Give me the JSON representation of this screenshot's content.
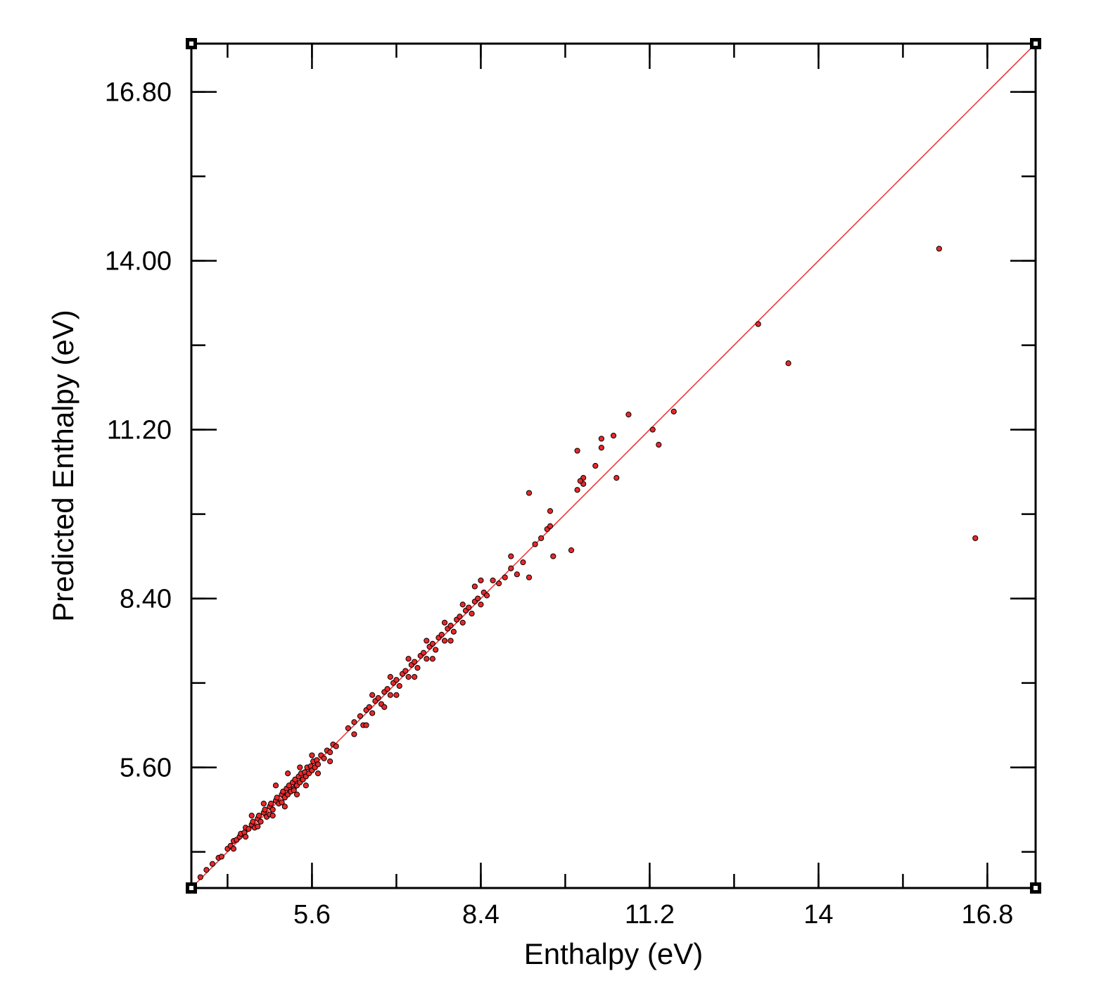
{
  "chart_data": {
    "type": "scatter",
    "title": "",
    "xlabel": "Enthalpy (eV)",
    "ylabel": "Predicted Enthalpy (eV)",
    "xlim": [
      3.6,
      17.6
    ],
    "ylim": [
      3.6,
      17.6
    ],
    "x_ticks": [
      5.6,
      8.4,
      11.2,
      14,
      16.8
    ],
    "x_tick_labels": [
      "5.6",
      "8.4",
      "11.2",
      "14",
      "16.8"
    ],
    "y_ticks": [
      5.6,
      8.4,
      11.2,
      14.0,
      16.8
    ],
    "y_tick_labels": [
      "5.60",
      "8.40",
      "11.20",
      "14.00",
      "16.80"
    ],
    "grid": false,
    "legend": "none",
    "marker_color": "#e8282a",
    "marker_edge_color": "#000000",
    "reference_line": {
      "x": [
        3.6,
        17.6
      ],
      "y": [
        3.6,
        17.6
      ],
      "color": "#e8282a"
    },
    "series": [
      {
        "points": [
          [
            3.75,
            3.78
          ],
          [
            3.85,
            3.9
          ],
          [
            3.95,
            4.0
          ],
          [
            4.05,
            4.1
          ],
          [
            4.1,
            4.12
          ],
          [
            4.2,
            4.25
          ],
          [
            4.25,
            4.3
          ],
          [
            4.3,
            4.38
          ],
          [
            4.35,
            4.4
          ],
          [
            4.4,
            4.45
          ],
          [
            4.42,
            4.5
          ],
          [
            4.48,
            4.52
          ],
          [
            4.5,
            4.6
          ],
          [
            4.55,
            4.58
          ],
          [
            4.6,
            4.65
          ],
          [
            4.62,
            4.7
          ],
          [
            4.65,
            4.6
          ],
          [
            4.7,
            4.75
          ],
          [
            4.72,
            4.8
          ],
          [
            4.75,
            4.7
          ],
          [
            4.8,
            4.85
          ],
          [
            4.82,
            4.9
          ],
          [
            4.85,
            4.78
          ],
          [
            4.9,
            4.95
          ],
          [
            4.92,
            5.0
          ],
          [
            4.95,
            4.9
          ],
          [
            5.0,
            5.05
          ],
          [
            5.02,
            5.1
          ],
          [
            5.05,
            5.0
          ],
          [
            5.1,
            5.15
          ],
          [
            5.12,
            5.2
          ],
          [
            5.15,
            5.1
          ],
          [
            5.18,
            5.25
          ],
          [
            5.2,
            5.15
          ],
          [
            5.22,
            5.3
          ],
          [
            5.25,
            5.2
          ],
          [
            5.28,
            5.35
          ],
          [
            5.3,
            5.25
          ],
          [
            5.32,
            5.4
          ],
          [
            5.35,
            5.3
          ],
          [
            5.38,
            5.45
          ],
          [
            5.4,
            5.35
          ],
          [
            5.42,
            5.5
          ],
          [
            5.45,
            5.4
          ],
          [
            5.48,
            5.52
          ],
          [
            5.5,
            5.45
          ],
          [
            5.52,
            5.6
          ],
          [
            5.55,
            5.5
          ],
          [
            5.58,
            5.62
          ],
          [
            5.6,
            5.55
          ],
          [
            5.62,
            5.7
          ],
          [
            5.65,
            5.6
          ],
          [
            5.68,
            5.72
          ],
          [
            5.7,
            5.65
          ],
          [
            5.75,
            5.8
          ],
          [
            5.8,
            5.75
          ],
          [
            5.85,
            5.88
          ],
          [
            5.9,
            5.85
          ],
          [
            5.95,
            5.98
          ],
          [
            6.0,
            5.95
          ],
          [
            4.3,
            4.25
          ],
          [
            4.5,
            4.45
          ],
          [
            4.7,
            4.62
          ],
          [
            4.9,
            4.82
          ],
          [
            5.1,
            5.02
          ],
          [
            5.3,
            5.22
          ],
          [
            5.0,
            5.3
          ],
          [
            5.2,
            5.5
          ],
          [
            5.4,
            5.6
          ],
          [
            5.6,
            5.8
          ],
          [
            4.8,
            5.0
          ],
          [
            4.6,
            4.8
          ],
          [
            5.5,
            5.3
          ],
          [
            5.7,
            5.5
          ],
          [
            5.9,
            5.7
          ],
          [
            4.95,
            4.8
          ],
          [
            5.15,
            4.95
          ],
          [
            5.35,
            5.15
          ],
          [
            6.2,
            6.25
          ],
          [
            6.3,
            6.15
          ],
          [
            6.4,
            6.45
          ],
          [
            6.45,
            6.3
          ],
          [
            6.5,
            6.55
          ],
          [
            6.55,
            6.6
          ],
          [
            6.6,
            6.5
          ],
          [
            6.65,
            6.7
          ],
          [
            6.7,
            6.75
          ],
          [
            6.75,
            6.65
          ],
          [
            6.8,
            6.85
          ],
          [
            6.85,
            6.9
          ],
          [
            6.9,
            6.8
          ],
          [
            6.95,
            7.0
          ],
          [
            7.0,
            7.05
          ],
          [
            7.05,
            6.95
          ],
          [
            7.1,
            7.15
          ],
          [
            7.15,
            7.2
          ],
          [
            7.2,
            7.1
          ],
          [
            7.25,
            7.3
          ],
          [
            7.3,
            7.35
          ],
          [
            7.35,
            7.25
          ],
          [
            7.4,
            7.45
          ],
          [
            7.45,
            7.5
          ],
          [
            7.5,
            7.4
          ],
          [
            7.55,
            7.6
          ],
          [
            7.6,
            7.65
          ],
          [
            7.65,
            7.55
          ],
          [
            7.7,
            7.75
          ],
          [
            7.75,
            7.8
          ],
          [
            7.8,
            7.7
          ],
          [
            7.85,
            7.9
          ],
          [
            7.9,
            7.95
          ],
          [
            7.95,
            7.85
          ],
          [
            8.0,
            8.05
          ],
          [
            8.05,
            8.1
          ],
          [
            8.1,
            8.0
          ],
          [
            8.15,
            8.2
          ],
          [
            8.2,
            8.25
          ],
          [
            8.25,
            8.15
          ],
          [
            8.3,
            8.35
          ],
          [
            8.35,
            8.4
          ],
          [
            8.4,
            8.3
          ],
          [
            8.45,
            8.5
          ],
          [
            8.5,
            8.45
          ],
          [
            8.6,
            8.7
          ],
          [
            8.7,
            8.65
          ],
          [
            8.8,
            8.75
          ],
          [
            6.3,
            6.35
          ],
          [
            6.6,
            6.8
          ],
          [
            6.9,
            7.1
          ],
          [
            7.2,
            7.4
          ],
          [
            7.5,
            7.7
          ],
          [
            7.8,
            8.0
          ],
          [
            8.1,
            8.3
          ],
          [
            8.3,
            8.6
          ],
          [
            8.4,
            8.7
          ],
          [
            8.9,
            8.9
          ],
          [
            9.0,
            8.8
          ],
          [
            9.2,
            8.75
          ],
          [
            7.0,
            6.8
          ],
          [
            7.3,
            7.1
          ],
          [
            7.6,
            7.4
          ],
          [
            7.9,
            7.7
          ],
          [
            6.5,
            6.3
          ],
          [
            6.8,
            6.6
          ],
          [
            8.9,
            9.1
          ],
          [
            9.1,
            9.0
          ],
          [
            9.3,
            9.3
          ],
          [
            9.4,
            9.4
          ],
          [
            9.5,
            9.55
          ],
          [
            9.55,
            9.6
          ],
          [
            9.6,
            9.1
          ],
          [
            9.2,
            10.15
          ],
          [
            9.55,
            9.85
          ],
          [
            9.9,
            9.2
          ],
          [
            10.0,
            10.2
          ],
          [
            10.1,
            10.3
          ],
          [
            10.1,
            10.4
          ],
          [
            10.05,
            10.35
          ],
          [
            10.0,
            10.85
          ],
          [
            10.3,
            10.6
          ],
          [
            10.4,
            10.9
          ],
          [
            10.4,
            11.05
          ],
          [
            10.6,
            11.1
          ],
          [
            10.65,
            10.4
          ],
          [
            10.85,
            11.45
          ],
          [
            11.25,
            11.2
          ],
          [
            11.35,
            10.95
          ],
          [
            11.6,
            11.5
          ],
          [
            13.0,
            12.95
          ],
          [
            13.5,
            12.3
          ],
          [
            16.0,
            14.2
          ],
          [
            16.6,
            9.4
          ]
        ]
      }
    ]
  }
}
